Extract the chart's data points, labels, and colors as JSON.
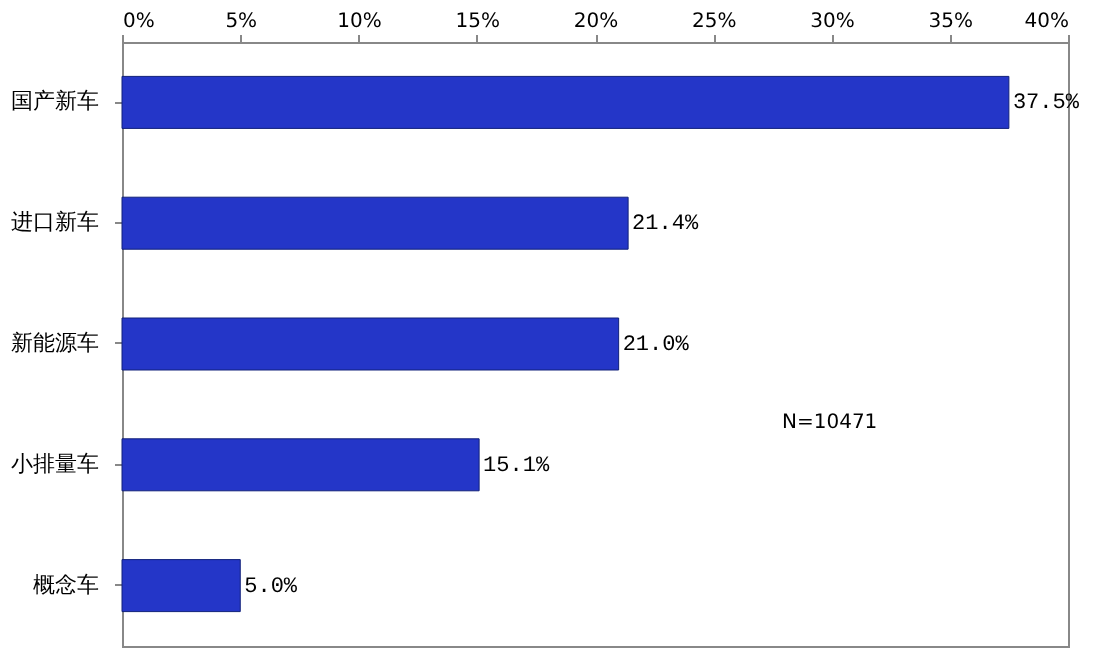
{
  "chart_data": {
    "type": "bar",
    "orientation": "horizontal",
    "categories": [
      "国产新车",
      "进口新车",
      "新能源车",
      "小排量车",
      "概念车"
    ],
    "values": [
      37.5,
      21.4,
      21.0,
      15.1,
      5.0
    ],
    "value_labels": [
      "37.5%",
      "21.4%",
      "21.0%",
      "15.1%",
      "5.0%"
    ],
    "color": "#2436c8",
    "xlim": [
      0,
      40
    ],
    "xticks": [
      {
        "value": 0,
        "label": "0%"
      },
      {
        "value": 5,
        "label": "5%"
      },
      {
        "value": 10,
        "label": "10%"
      },
      {
        "value": 15,
        "label": "15%"
      },
      {
        "value": 20,
        "label": "20%"
      },
      {
        "value": 25,
        "label": "25%"
      },
      {
        "value": 30,
        "label": "30%"
      },
      {
        "value": 35,
        "label": "35%"
      },
      {
        "value": 40,
        "label": "40%"
      }
    ],
    "grid": false,
    "annotations": [
      "N=10471"
    ]
  }
}
